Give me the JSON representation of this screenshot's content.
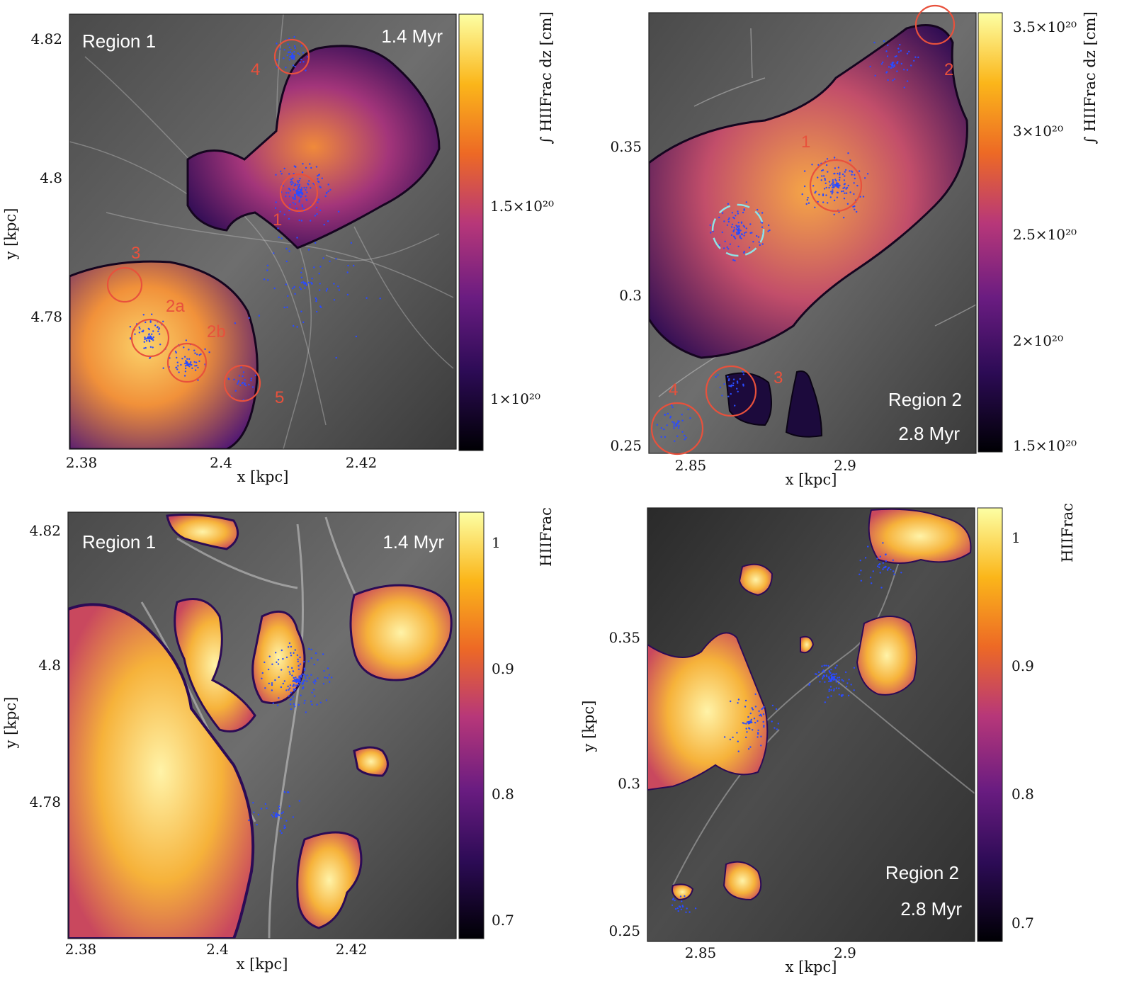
{
  "panels": {
    "top_left": {
      "region": "Region 1",
      "time": "1.4 Myr",
      "xlabel": "x [kpc]",
      "ylabel": "y [kpc]",
      "x_ticks": [
        "2.38",
        "2.4",
        "2.42"
      ],
      "y_ticks": [
        "4.82",
        "4.8",
        "4.78"
      ],
      "colorbar_label": "∫ HIIFrac dz [cm]",
      "colorbar_ticks": [
        "1.5×10²⁰",
        "1×10²⁰"
      ],
      "markers": [
        "1",
        "2a",
        "2b",
        "3",
        "4",
        "5"
      ]
    },
    "top_right": {
      "region": "Region 2",
      "time": "2.8 Myr",
      "xlabel": "x [kpc]",
      "ylabel": "",
      "x_ticks": [
        "2.85",
        "2.9"
      ],
      "y_ticks": [
        "0.35",
        "0.3",
        "0.25"
      ],
      "colorbar_label": "∫ HIIFrac dz [cm]",
      "colorbar_ticks": [
        "3.5×10²⁰",
        "3×10²⁰",
        "2.5×10²⁰",
        "2×10²⁰",
        "1.5×10²⁰"
      ],
      "markers": [
        "1",
        "2",
        "3",
        "4"
      ]
    },
    "bottom_left": {
      "region": "Region 1",
      "time": "1.4 Myr",
      "xlabel": "x [kpc]",
      "ylabel": "y [kpc]",
      "x_ticks": [
        "2.38",
        "2.4",
        "2.42"
      ],
      "y_ticks": [
        "4.82",
        "4.8",
        "4.78"
      ],
      "colorbar_label": "HIIFrac",
      "colorbar_ticks": [
        "1",
        "0.9",
        "0.8",
        "0.7"
      ]
    },
    "bottom_right": {
      "region": "Region 2",
      "time": "2.8 Myr",
      "xlabel": "x [kpc]",
      "ylabel": "y [kpc]",
      "x_ticks": [
        "2.85",
        "2.9"
      ],
      "y_ticks": [
        "0.35",
        "0.3",
        "0.25"
      ],
      "colorbar_label": "HIIFrac",
      "colorbar_ticks": [
        "1",
        "0.9",
        "0.8",
        "0.7"
      ]
    }
  },
  "colors": {
    "marker_circle": "#e8513c",
    "star_particles": "#2a4bff",
    "dashed_circle": "#8fe3e6",
    "cmap": [
      "#000004",
      "#2c0b55",
      "#6a1c81",
      "#b73779",
      "#ed6925",
      "#fbb61a",
      "#fcffa4"
    ]
  }
}
